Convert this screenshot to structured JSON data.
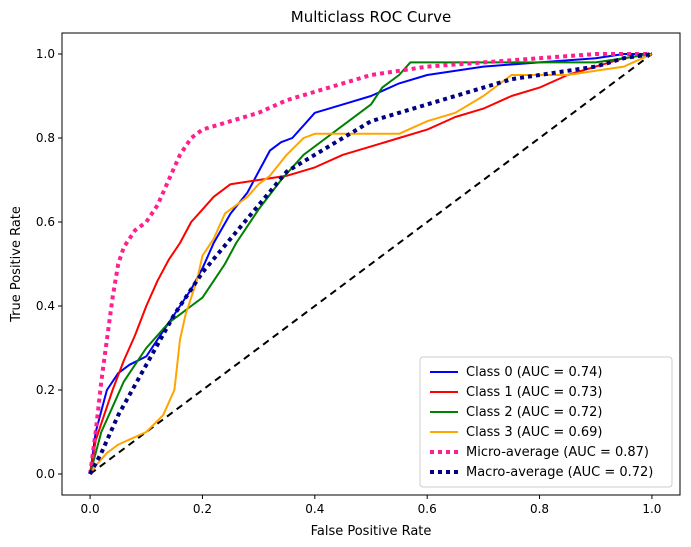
{
  "chart_data": {
    "type": "line",
    "title": "Multiclass ROC Curve",
    "xlabel": "False Positive Rate",
    "ylabel": "True Positive Rate",
    "xlim": [
      -0.05,
      1.05
    ],
    "ylim": [
      -0.05,
      1.05
    ],
    "x_ticks": [
      0.0,
      0.2,
      0.4,
      0.6,
      0.8,
      1.0
    ],
    "y_ticks": [
      0.0,
      0.2,
      0.4,
      0.6,
      0.8,
      1.0
    ],
    "x_tick_labels": [
      "0.0",
      "0.2",
      "0.4",
      "0.6",
      "0.8",
      "1.0"
    ],
    "y_tick_labels": [
      "0.0",
      "0.2",
      "0.4",
      "0.6",
      "0.8",
      "1.0"
    ],
    "grid": false,
    "legend_position": "lower-right",
    "series": [
      {
        "name": "Class 0 (AUC = 0.74)",
        "color": "#0000ff",
        "style": "solid",
        "x": [
          0.0,
          0.01,
          0.02,
          0.03,
          0.05,
          0.07,
          0.1,
          0.12,
          0.14,
          0.16,
          0.18,
          0.2,
          0.22,
          0.25,
          0.28,
          0.3,
          0.32,
          0.34,
          0.36,
          0.38,
          0.4,
          0.45,
          0.5,
          0.55,
          0.6,
          0.7,
          0.8,
          0.9,
          0.95,
          1.0
        ],
        "y": [
          0.0,
          0.1,
          0.15,
          0.2,
          0.24,
          0.26,
          0.28,
          0.32,
          0.36,
          0.4,
          0.44,
          0.49,
          0.55,
          0.62,
          0.67,
          0.72,
          0.77,
          0.79,
          0.8,
          0.83,
          0.86,
          0.88,
          0.9,
          0.93,
          0.95,
          0.97,
          0.98,
          0.99,
          1.0,
          1.0
        ]
      },
      {
        "name": "Class 1 (AUC = 0.73)",
        "color": "#ff0000",
        "style": "solid",
        "x": [
          0.0,
          0.01,
          0.02,
          0.04,
          0.06,
          0.08,
          0.1,
          0.12,
          0.14,
          0.16,
          0.18,
          0.2,
          0.22,
          0.25,
          0.3,
          0.35,
          0.4,
          0.45,
          0.5,
          0.55,
          0.6,
          0.65,
          0.7,
          0.75,
          0.8,
          0.85,
          0.9,
          0.95,
          1.0
        ],
        "y": [
          0.0,
          0.08,
          0.12,
          0.2,
          0.27,
          0.33,
          0.4,
          0.46,
          0.51,
          0.55,
          0.6,
          0.63,
          0.66,
          0.69,
          0.7,
          0.71,
          0.73,
          0.76,
          0.78,
          0.8,
          0.82,
          0.85,
          0.87,
          0.9,
          0.92,
          0.95,
          0.97,
          0.99,
          1.0
        ]
      },
      {
        "name": "Class 2 (AUC = 0.72)",
        "color": "#008000",
        "style": "solid",
        "x": [
          0.0,
          0.02,
          0.04,
          0.06,
          0.08,
          0.1,
          0.12,
          0.14,
          0.16,
          0.18,
          0.2,
          0.22,
          0.24,
          0.26,
          0.28,
          0.3,
          0.34,
          0.38,
          0.42,
          0.45,
          0.48,
          0.5,
          0.52,
          0.55,
          0.57,
          0.6,
          0.7,
          0.8,
          0.9,
          0.95,
          1.0
        ],
        "y": [
          0.0,
          0.1,
          0.16,
          0.22,
          0.26,
          0.3,
          0.33,
          0.36,
          0.38,
          0.4,
          0.42,
          0.46,
          0.5,
          0.55,
          0.59,
          0.63,
          0.7,
          0.76,
          0.8,
          0.83,
          0.86,
          0.88,
          0.92,
          0.95,
          0.98,
          0.98,
          0.98,
          0.98,
          0.98,
          0.99,
          1.0
        ]
      },
      {
        "name": "Class 3 (AUC = 0.69)",
        "color": "#ffa500",
        "style": "solid",
        "x": [
          0.0,
          0.01,
          0.03,
          0.05,
          0.1,
          0.13,
          0.15,
          0.16,
          0.17,
          0.19,
          0.2,
          0.22,
          0.24,
          0.26,
          0.28,
          0.3,
          0.32,
          0.35,
          0.38,
          0.4,
          0.45,
          0.5,
          0.55,
          0.6,
          0.65,
          0.7,
          0.75,
          0.8,
          0.85,
          0.9,
          0.95,
          1.0
        ],
        "y": [
          0.0,
          0.02,
          0.05,
          0.07,
          0.1,
          0.14,
          0.2,
          0.32,
          0.38,
          0.46,
          0.52,
          0.56,
          0.62,
          0.64,
          0.66,
          0.69,
          0.71,
          0.76,
          0.8,
          0.81,
          0.81,
          0.81,
          0.81,
          0.84,
          0.86,
          0.9,
          0.95,
          0.95,
          0.95,
          0.96,
          0.97,
          1.0
        ]
      },
      {
        "name": "Micro-average (AUC = 0.87)",
        "color": "#ff1f8e",
        "style": "dotted",
        "x": [
          0.0,
          0.01,
          0.02,
          0.03,
          0.04,
          0.05,
          0.06,
          0.08,
          0.1,
          0.12,
          0.14,
          0.16,
          0.18,
          0.2,
          0.25,
          0.3,
          0.35,
          0.4,
          0.45,
          0.5,
          0.55,
          0.6,
          0.7,
          0.8,
          0.9,
          1.0
        ],
        "y": [
          0.0,
          0.1,
          0.22,
          0.32,
          0.42,
          0.5,
          0.54,
          0.58,
          0.6,
          0.64,
          0.7,
          0.76,
          0.8,
          0.82,
          0.84,
          0.86,
          0.89,
          0.91,
          0.93,
          0.95,
          0.96,
          0.97,
          0.98,
          0.99,
          1.0,
          1.0
        ]
      },
      {
        "name": "Macro-average (AUC = 0.72)",
        "color": "#000080",
        "style": "dotted",
        "x": [
          0.0,
          0.02,
          0.05,
          0.1,
          0.15,
          0.2,
          0.25,
          0.3,
          0.35,
          0.4,
          0.45,
          0.5,
          0.55,
          0.6,
          0.65,
          0.7,
          0.75,
          0.8,
          0.85,
          0.9,
          0.95,
          1.0
        ],
        "y": [
          0.0,
          0.05,
          0.14,
          0.26,
          0.38,
          0.48,
          0.56,
          0.64,
          0.72,
          0.76,
          0.8,
          0.84,
          0.86,
          0.88,
          0.9,
          0.92,
          0.94,
          0.95,
          0.96,
          0.97,
          0.99,
          1.0
        ]
      },
      {
        "name": "",
        "color": "#000000",
        "style": "dashed",
        "x": [
          0.0,
          1.0
        ],
        "y": [
          0.0,
          1.0
        ]
      }
    ]
  }
}
